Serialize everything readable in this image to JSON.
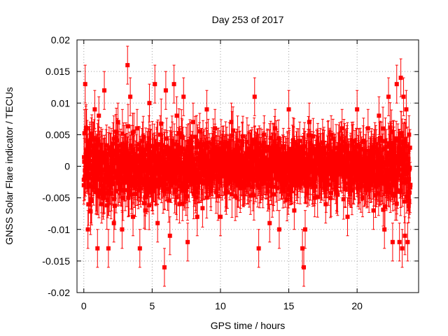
{
  "chart_data": {
    "type": "scatter",
    "title": "Day 253 of 2017",
    "xlabel": "GPS time / hours",
    "ylabel": "GNSS Solar Flare indicator / TECUs",
    "xlim": [
      -0.5,
      24.5
    ],
    "ylim": [
      -0.02,
      0.02
    ],
    "x_ticks": [
      0,
      5,
      10,
      15,
      20
    ],
    "x_tick_labels": [
      "0",
      "5",
      "10",
      "15",
      "20"
    ],
    "y_ticks": [
      -0.02,
      -0.015,
      -0.01,
      -0.005,
      0,
      0.005,
      0.01,
      0.015,
      0.02
    ],
    "y_tick_labels": [
      "-0.02",
      "-0.015",
      "-0.01",
      "-0.005",
      "0",
      "0.005",
      "0.01",
      "0.015",
      "0.02"
    ],
    "grid": true,
    "series_color": "#ff0000",
    "marker": "square",
    "error_bars": true,
    "series": [
      {
        "x": [
          0.0,
          0.1,
          0.2,
          0.3,
          0.45,
          0.6,
          0.8,
          1.0,
          1.1,
          1.3,
          1.5,
          1.8,
          2.0,
          2.2,
          2.5,
          2.8,
          3.0,
          3.2,
          3.25,
          3.4,
          3.6,
          3.9,
          4.1,
          4.3,
          4.5,
          4.8,
          5.0,
          5.2,
          5.4,
          5.6,
          5.9,
          6.0,
          6.3,
          6.6,
          6.8,
          7.0,
          7.3,
          7.6,
          7.8,
          8.0,
          8.3,
          8.6,
          9.0,
          9.3,
          9.6,
          10.0,
          10.4,
          10.8,
          11.2,
          11.6,
          12.0,
          12.5,
          12.8,
          13.2,
          13.6,
          14.0,
          14.3,
          14.6,
          15.0,
          15.4,
          15.8,
          16.0,
          16.1,
          16.2,
          16.5,
          16.9,
          17.3,
          17.7,
          18.1,
          18.5,
          18.9,
          19.3,
          19.7,
          20.0,
          20.4,
          20.8,
          21.2,
          21.6,
          22.0,
          22.3,
          22.6,
          22.9,
          23.1,
          23.2,
          23.3,
          23.4,
          23.5,
          23.6,
          23.7,
          23.8
        ],
        "y": [
          -0.003,
          0.013,
          0.006,
          -0.01,
          0.004,
          -0.002,
          0.009,
          -0.013,
          0.008,
          -0.006,
          0.012,
          -0.013,
          0.003,
          -0.009,
          0.007,
          -0.01,
          0.002,
          0.016,
          -0.005,
          0.011,
          -0.008,
          0.006,
          -0.013,
          0.004,
          -0.007,
          0.01,
          -0.004,
          0.013,
          -0.009,
          0.005,
          -0.016,
          0.012,
          -0.011,
          0.013,
          0.008,
          -0.006,
          0.011,
          -0.012,
          0.004,
          0.007,
          -0.008,
          0.003,
          0.009,
          -0.004,
          0.006,
          -0.008,
          0.002,
          0.007,
          -0.005,
          0.004,
          -0.003,
          0.011,
          -0.013,
          0.005,
          -0.009,
          0.006,
          -0.01,
          0.003,
          0.009,
          -0.007,
          0.004,
          -0.013,
          -0.016,
          -0.01,
          0.007,
          -0.005,
          0.003,
          -0.006,
          0.005,
          -0.004,
          0.006,
          -0.008,
          0.004,
          0.009,
          -0.005,
          0.006,
          -0.007,
          0.008,
          -0.01,
          0.011,
          -0.012,
          0.013,
          -0.012,
          0.014,
          -0.013,
          0.011,
          -0.011,
          0.009,
          -0.012,
          0.005
        ]
      }
    ]
  }
}
